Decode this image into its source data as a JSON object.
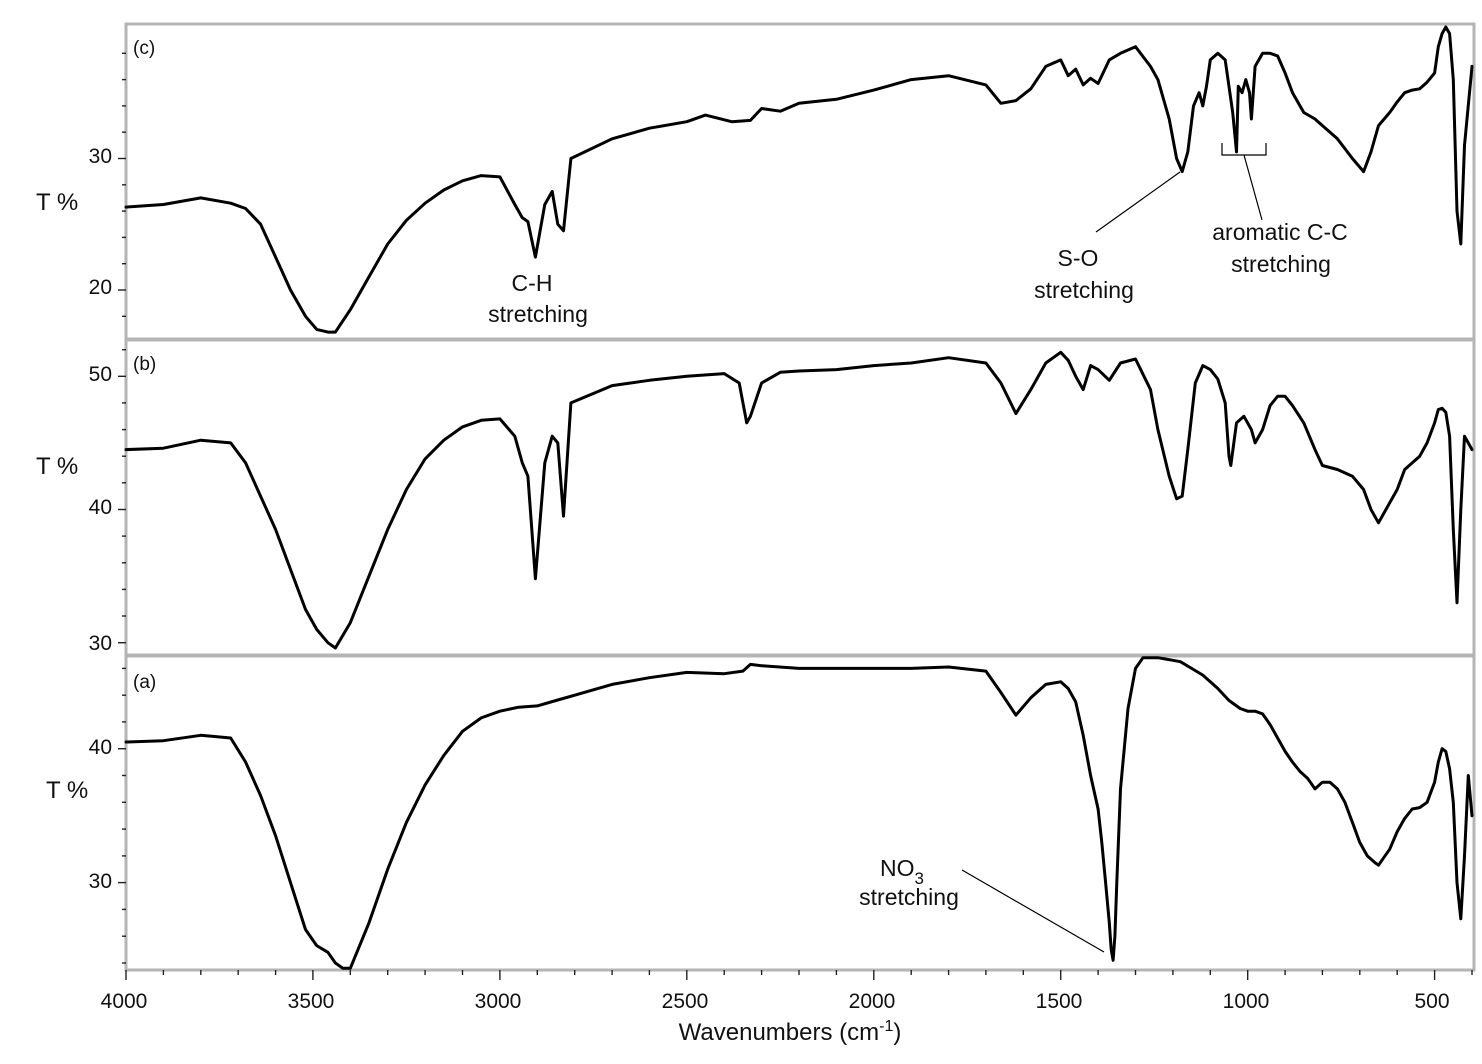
{
  "chart_data": {
    "type": "line",
    "xlabel": "Wavenumbers (cm",
    "xlabel_sup": "-1",
    "xlabel_end": ")",
    "x_ticks": [
      "4000",
      "3500",
      "3000",
      "2500",
      "2000",
      "1500",
      "1000",
      "500"
    ],
    "xlim": [
      4000,
      400
    ],
    "x_reversed": true,
    "panels": [
      {
        "id": "c",
        "panel_label": "(c)",
        "ylabel": "T %",
        "ylim": [
          16.5,
          40
        ],
        "y_ticks": [
          "30",
          "20"
        ],
        "y_tick_values": [
          30,
          20
        ],
        "series": {
          "x": [
            4000,
            3900,
            3800,
            3720,
            3680,
            3640,
            3600,
            3560,
            3520,
            3490,
            3460,
            3440,
            3400,
            3350,
            3300,
            3250,
            3200,
            3150,
            3100,
            3050,
            3000,
            2960,
            2940,
            2925,
            2905,
            2880,
            2860,
            2845,
            2830,
            2810,
            2700,
            2600,
            2500,
            2450,
            2380,
            2330,
            2300,
            2250,
            2200,
            2100,
            2000,
            1900,
            1800,
            1700,
            1660,
            1620,
            1580,
            1540,
            1500,
            1480,
            1460,
            1440,
            1420,
            1400,
            1370,
            1340,
            1300,
            1260,
            1240,
            1210,
            1190,
            1175,
            1160,
            1145,
            1130,
            1120,
            1110,
            1100,
            1080,
            1060,
            1040,
            1030,
            1025,
            1015,
            1005,
            995,
            990,
            980,
            960,
            940,
            920,
            900,
            880,
            850,
            820,
            800,
            760,
            720,
            690,
            670,
            650,
            620,
            600,
            580,
            560,
            540,
            520,
            500,
            490,
            480,
            470,
            460,
            450,
            440,
            430,
            420,
            400
          ],
          "y": [
            26.3,
            26.5,
            27.0,
            26.6,
            26.2,
            25.0,
            22.5,
            20.0,
            18.0,
            17.0,
            16.8,
            16.8,
            18.5,
            21.0,
            23.5,
            25.3,
            26.6,
            27.6,
            28.3,
            28.7,
            28.6,
            26.5,
            25.5,
            25.2,
            22.5,
            26.5,
            27.5,
            25.0,
            24.5,
            30.0,
            31.5,
            32.3,
            32.8,
            33.3,
            32.8,
            32.9,
            33.8,
            33.6,
            34.2,
            34.5,
            35.2,
            36.0,
            36.3,
            35.6,
            34.2,
            34.4,
            35.3,
            37.0,
            37.5,
            36.3,
            36.8,
            35.6,
            36.1,
            35.7,
            37.5,
            38.0,
            38.5,
            37.0,
            36.0,
            33.0,
            30.0,
            29.0,
            30.5,
            34.0,
            35.0,
            34.0,
            35.5,
            37.5,
            38.0,
            37.5,
            33.5,
            30.5,
            35.5,
            35.0,
            36.0,
            35.0,
            33.0,
            37.0,
            38.0,
            38.0,
            37.8,
            36.5,
            35.0,
            33.5,
            33.0,
            32.5,
            31.5,
            30.0,
            29.0,
            30.5,
            32.5,
            33.5,
            34.3,
            35.0,
            35.2,
            35.3,
            35.8,
            36.5,
            38.5,
            39.5,
            40.0,
            39.5,
            36.0,
            26.0,
            23.5,
            31.0,
            37.0
          ]
        },
        "annotations": [
          {
            "lines": [
              "C-H",
              "stretching"
            ]
          },
          {
            "lines": [
              "S-O",
              "stretching"
            ]
          },
          {
            "lines": [
              "aromatic C-C",
              "stretching"
            ]
          }
        ]
      },
      {
        "id": "b",
        "panel_label": "(b)",
        "ylabel": "T %",
        "ylim": [
          29.3,
          52.5
        ],
        "y_ticks": [
          "50",
          "40",
          "30"
        ],
        "y_tick_values": [
          50,
          40,
          30
        ],
        "series": {
          "x": [
            4000,
            3900,
            3800,
            3720,
            3680,
            3640,
            3600,
            3560,
            3520,
            3490,
            3460,
            3440,
            3400,
            3350,
            3300,
            3250,
            3200,
            3150,
            3100,
            3050,
            3000,
            2960,
            2940,
            2925,
            2905,
            2880,
            2860,
            2845,
            2830,
            2810,
            2700,
            2600,
            2500,
            2400,
            2360,
            2340,
            2330,
            2300,
            2250,
            2200,
            2100,
            2000,
            1900,
            1800,
            1700,
            1660,
            1620,
            1580,
            1540,
            1500,
            1480,
            1460,
            1440,
            1420,
            1400,
            1370,
            1340,
            1300,
            1260,
            1240,
            1210,
            1190,
            1175,
            1160,
            1140,
            1120,
            1100,
            1080,
            1060,
            1050,
            1045,
            1030,
            1010,
            990,
            980,
            960,
            940,
            920,
            900,
            880,
            850,
            820,
            800,
            760,
            720,
            690,
            670,
            650,
            620,
            600,
            580,
            560,
            540,
            520,
            500,
            490,
            480,
            470,
            460,
            450,
            440,
            430,
            420,
            400
          ],
          "y": [
            44.5,
            44.6,
            45.2,
            45.0,
            43.5,
            41.0,
            38.5,
            35.5,
            32.5,
            31.0,
            30.0,
            29.6,
            31.5,
            35.0,
            38.5,
            41.5,
            43.8,
            45.2,
            46.2,
            46.7,
            46.8,
            45.5,
            43.5,
            42.5,
            34.8,
            43.5,
            45.5,
            45.0,
            39.5,
            48.0,
            49.3,
            49.7,
            50.0,
            50.2,
            49.5,
            46.5,
            47.0,
            49.5,
            50.3,
            50.4,
            50.5,
            50.8,
            51.0,
            51.4,
            51.0,
            49.5,
            47.2,
            49.0,
            51.0,
            51.8,
            51.2,
            50.0,
            49.0,
            50.8,
            50.5,
            49.7,
            51.0,
            51.3,
            49.0,
            46.0,
            42.5,
            40.8,
            41.0,
            44.5,
            49.5,
            50.8,
            50.5,
            49.8,
            48.0,
            44.0,
            43.3,
            46.5,
            47.0,
            46.0,
            45.0,
            46.0,
            47.8,
            48.5,
            48.5,
            47.8,
            46.5,
            44.5,
            43.3,
            43.0,
            42.5,
            41.5,
            40.0,
            39.0,
            40.5,
            41.5,
            43.0,
            43.5,
            44.0,
            45.0,
            46.5,
            47.5,
            47.6,
            47.3,
            45.5,
            38.5,
            33.0,
            40.0,
            45.5,
            44.5
          ]
        }
      },
      {
        "id": "a",
        "panel_label": "(a)",
        "ylabel": "T %",
        "ylim": [
          23.7,
          46.7
        ],
        "y_ticks": [
          "40",
          "30"
        ],
        "y_tick_values": [
          40,
          30
        ],
        "series": {
          "x": [
            4000,
            3900,
            3800,
            3720,
            3680,
            3640,
            3600,
            3560,
            3520,
            3490,
            3460,
            3440,
            3420,
            3400,
            3350,
            3300,
            3250,
            3200,
            3150,
            3100,
            3050,
            3000,
            2950,
            2900,
            2850,
            2800,
            2700,
            2600,
            2500,
            2400,
            2350,
            2330,
            2300,
            2200,
            2100,
            2000,
            1900,
            1800,
            1700,
            1660,
            1620,
            1580,
            1540,
            1500,
            1480,
            1460,
            1440,
            1420,
            1400,
            1390,
            1380,
            1370,
            1365,
            1360,
            1355,
            1350,
            1340,
            1320,
            1300,
            1280,
            1260,
            1240,
            1220,
            1200,
            1180,
            1150,
            1120,
            1100,
            1080,
            1050,
            1020,
            1000,
            980,
            960,
            940,
            920,
            900,
            880,
            860,
            840,
            820,
            800,
            780,
            760,
            740,
            720,
            700,
            680,
            660,
            650,
            620,
            600,
            580,
            560,
            540,
            520,
            500,
            490,
            480,
            470,
            460,
            450,
            440,
            430,
            420,
            410,
            400
          ],
          "y": [
            40.5,
            40.6,
            41.0,
            40.8,
            39.0,
            36.5,
            33.5,
            30.0,
            26.5,
            25.3,
            24.8,
            24.0,
            23.6,
            23.6,
            27.0,
            31.0,
            34.5,
            37.3,
            39.5,
            41.3,
            42.3,
            42.8,
            43.1,
            43.2,
            43.6,
            44.0,
            44.8,
            45.3,
            45.7,
            45.6,
            45.8,
            46.3,
            46.2,
            46.0,
            46.0,
            46.0,
            46.0,
            46.1,
            45.8,
            44.2,
            42.5,
            43.8,
            44.8,
            45.0,
            44.5,
            43.5,
            41.0,
            38.0,
            35.5,
            33.0,
            30.0,
            27.0,
            25.0,
            24.2,
            26.0,
            30.0,
            37.0,
            43.0,
            46.0,
            46.8,
            46.8,
            46.8,
            46.7,
            46.6,
            46.5,
            46.0,
            45.5,
            45.0,
            44.5,
            43.6,
            43.0,
            42.8,
            42.8,
            42.6,
            41.8,
            40.8,
            39.8,
            39.0,
            38.3,
            37.8,
            37.0,
            37.5,
            37.5,
            37.0,
            36.0,
            34.5,
            33.0,
            32.0,
            31.5,
            31.3,
            32.5,
            33.8,
            34.8,
            35.5,
            35.6,
            36.0,
            37.5,
            39.0,
            40.0,
            39.8,
            38.5,
            36.0,
            30.0,
            27.3,
            32.0,
            38.0,
            35.0
          ]
        },
        "annotations": [
          {
            "lines": [
              "NO",
              "stretching"
            ],
            "subscript": "3"
          }
        ]
      }
    ]
  }
}
